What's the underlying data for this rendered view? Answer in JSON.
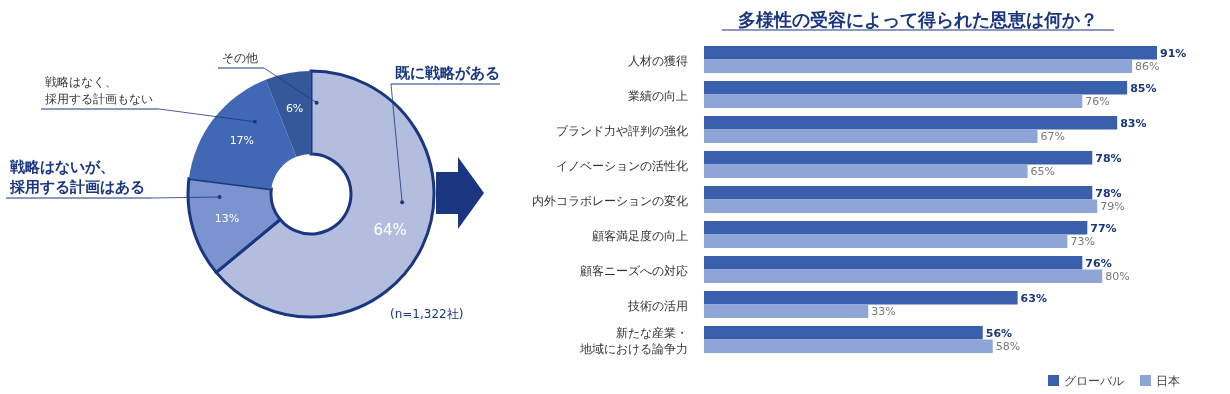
{
  "chart_data": [
    {
      "type": "donut",
      "categories": [
        "既に戦略がある",
        "戦略はないが、採用する計画はある",
        "戦略はなく、採用する計画もない",
        "その他"
      ],
      "values": [
        64,
        13,
        17,
        6
      ],
      "colors": [
        "#b3bedf",
        "#7b93cf",
        "#4168b5",
        "#35589a"
      ],
      "value_labels": [
        "64%",
        "13%",
        "17%",
        "6%"
      ],
      "annotations": [
        "(n=1,322社)"
      ]
    },
    {
      "type": "bar",
      "orientation": "horizontal",
      "title": "多様性の受容によって得られた恩恵は何か？",
      "categories": [
        "人材の獲得",
        "業績の向上",
        "ブランド力や評判の強化",
        "イノベーションの活性化",
        "内外コラボレーションの変化",
        "顧客満足度の向上",
        "顧客ニーズへの対応",
        "技術の活用",
        "新たな産業・地域における論争力"
      ],
      "tick_labels": "y",
      "legend": "bottom right",
      "series": [
        {
          "name": "グローバル",
          "color": "#3a60ad",
          "values": [
            91,
            85,
            83,
            78,
            78,
            77,
            76,
            63,
            56
          ],
          "value_labels": [
            "91%",
            "85%",
            "83%",
            "78%",
            "78%",
            "77%",
            "76%",
            "63%",
            "56%"
          ]
        },
        {
          "name": "日本",
          "color": "#8fa5d8",
          "values": [
            86,
            76,
            67,
            65,
            79,
            73,
            80,
            33,
            58
          ],
          "value_labels": [
            "86%",
            "76%",
            "67%",
            "65%",
            "79%",
            "73%",
            "80%",
            "33%",
            "58%"
          ]
        }
      ]
    }
  ]
}
